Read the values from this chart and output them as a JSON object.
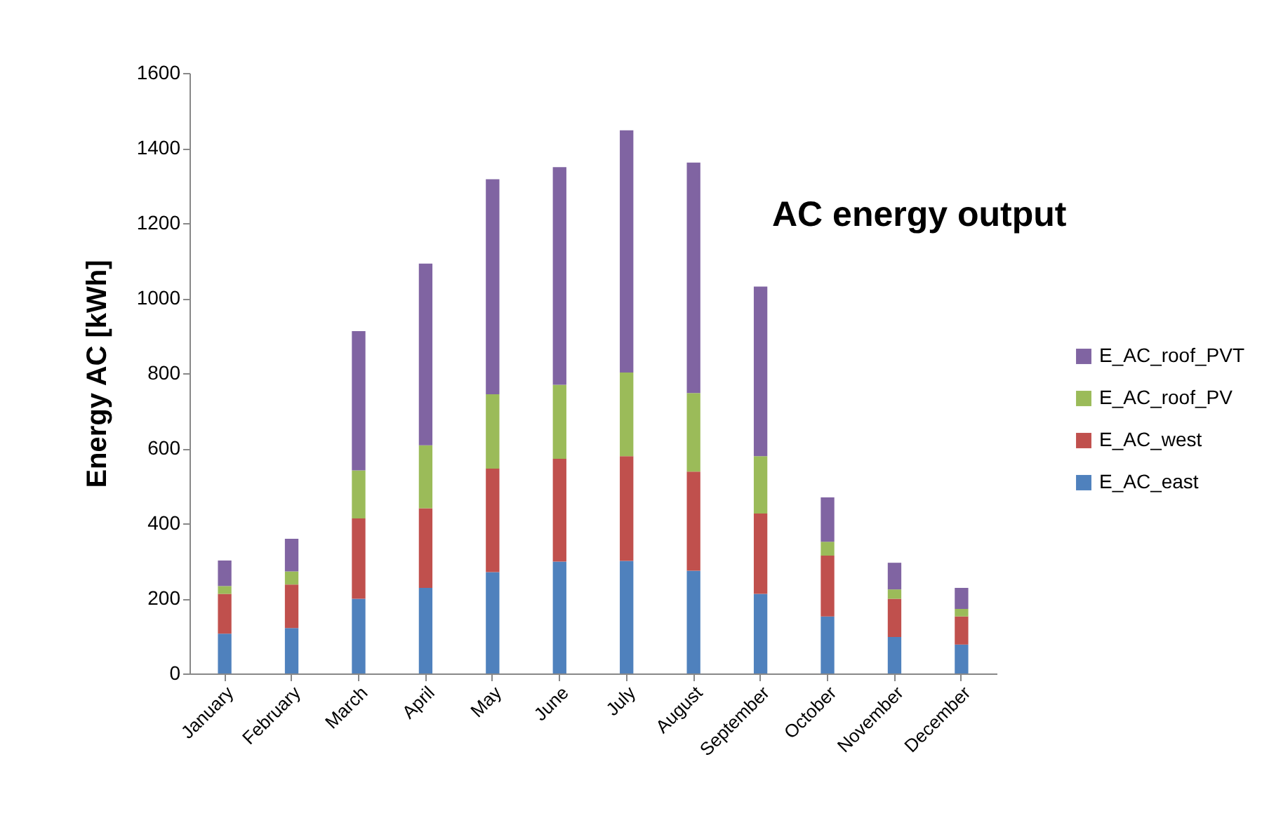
{
  "chart_data": {
    "type": "bar",
    "title": "AC energy output",
    "ylabel": "Energy AC [kWh]",
    "stacked": true,
    "legend": "right",
    "grid": false,
    "categories": [
      "January",
      "February",
      "March",
      "April",
      "May",
      "June",
      "July",
      "August",
      "September",
      "October",
      "November",
      "December"
    ],
    "series": [
      {
        "name": "E_AC_east",
        "color": "#4f81bd",
        "values": [
          106,
          121,
          199,
          228,
          270,
          298,
          300,
          274,
          212,
          152,
          97,
          77
        ]
      },
      {
        "name": "E_AC_west",
        "color": "#c0504d",
        "values": [
          106,
          116,
          214,
          212,
          276,
          274,
          279,
          264,
          214,
          162,
          102,
          75
        ]
      },
      {
        "name": "E_AC_roof_PV",
        "color": "#9bbb59",
        "values": [
          21,
          35,
          128,
          168,
          198,
          197,
          223,
          209,
          153,
          37,
          25,
          20
        ]
      },
      {
        "name": "E_AC_roof_PVT",
        "color": "#8064a2",
        "values": [
          68,
          87,
          371,
          484,
          573,
          580,
          645,
          614,
          452,
          118,
          71,
          56
        ]
      }
    ],
    "ylim": [
      0,
      1600
    ],
    "yticks": [
      0,
      200,
      400,
      600,
      800,
      1000,
      1200,
      1400,
      1600
    ]
  }
}
